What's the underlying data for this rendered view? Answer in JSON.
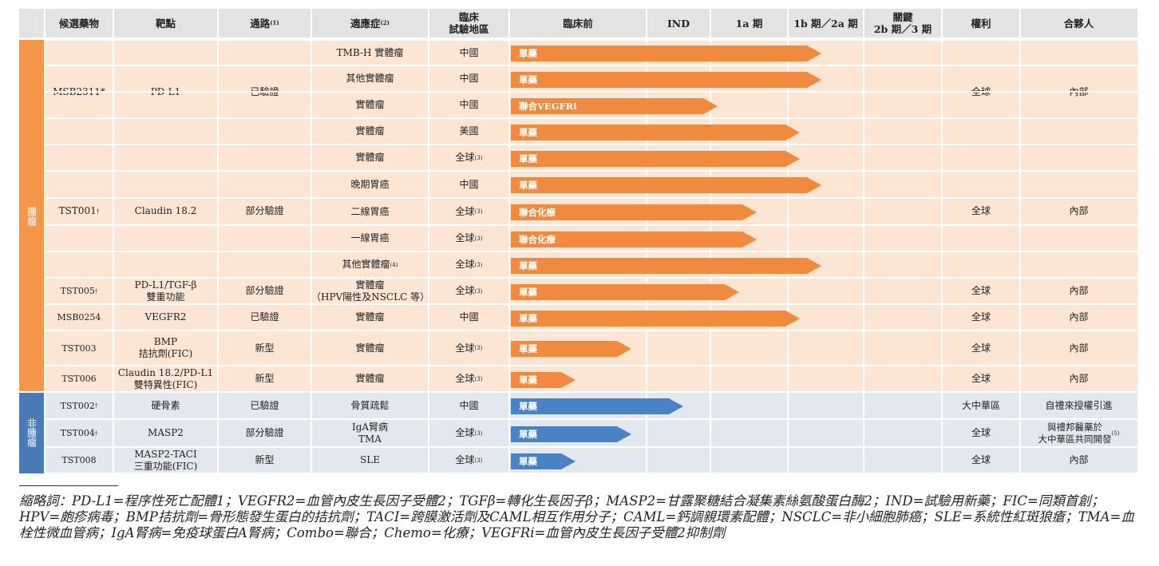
{
  "headers": [
    "候選藥物",
    "靶點",
    "通路",
    "適應症",
    "臨床\n試驗地區",
    "臨床前",
    "IND",
    "1a 期",
    "1b 期／2a 期",
    "關鍵\n2b 期／3 期",
    "權利",
    "合夥人"
  ],
  "header_notes": {
    "route": "(1)",
    "indication": "(2)"
  },
  "groups": [
    {
      "label": "腫瘤",
      "color": "#f5974a"
    },
    {
      "label": "非腫瘤",
      "color": "#4a7ab8"
    }
  ],
  "drugs": [
    {
      "candidate": "MSB2311*",
      "target": "PD-L1",
      "route": "已驗證",
      "rights": "全球",
      "partner": "內部"
    },
    {
      "candidate": "TST001",
      "sup": "†",
      "target": "Claudin 18.2",
      "route": "部分驗證",
      "rights": "全球",
      "partner": "內部"
    },
    {
      "candidate": "TST005",
      "sup": "†",
      "target": "PD-L1/TGF-β\n雙重功能",
      "route": "部分驗證",
      "rights": "全球",
      "partner": "內部"
    },
    {
      "candidate": "MSB0254",
      "target": "VEGFR2",
      "route": "已驗證",
      "rights": "全球",
      "partner": "內部"
    },
    {
      "candidate": "TST003",
      "target": "BMP\n拮抗劑(FIC)",
      "route": "新型",
      "rights": "全球",
      "partner": "內部"
    },
    {
      "candidate": "TST006",
      "target": "Claudin 18.2/PD-L1\n雙特異性(FIC)",
      "route": "新型",
      "rights": "全球",
      "partner": "內部"
    },
    {
      "candidate": "TST002",
      "sup": "†",
      "target": "硬骨素",
      "route": "已驗證",
      "rights": "大中華區",
      "partner": "自禮來授權引進"
    },
    {
      "candidate": "TST004",
      "sup": "†",
      "target": "MASP2",
      "route": "部分驗證",
      "rights": "全球",
      "partner": "與禮邦醫藥於\n大中華區共同開發",
      "partner_note": "(5)"
    },
    {
      "candidate": "TST008",
      "target": "MASP2-TACI\n三重功能(FIC)",
      "route": "新型",
      "rights": "全球",
      "partner": "內部"
    }
  ],
  "programs": [
    {
      "indication": "TMB-H 實體瘤",
      "region": "中國",
      "bar_label": "單藥",
      "progress": 0.72,
      "color": "orange"
    },
    {
      "indication": "其他實體瘤",
      "region": "中國",
      "bar_label": "單藥",
      "progress": 0.72,
      "color": "orange"
    },
    {
      "indication": "實體瘤",
      "region": "中國",
      "bar_label": "聯合VEGFRi",
      "progress": 0.48,
      "color": "orange"
    },
    {
      "indication": "實體瘤",
      "region": "美國",
      "bar_label": "單藥",
      "progress": 0.67,
      "color": "orange"
    },
    {
      "indication": "實體瘤",
      "region": "全球",
      "region_note": "(3)",
      "bar_label": "單藥",
      "progress": 0.67,
      "color": "orange"
    },
    {
      "indication": "晚期胃癌",
      "region": "中國",
      "bar_label": "單藥",
      "progress": 0.72,
      "color": "orange"
    },
    {
      "indication": "二線胃癌",
      "region": "全球",
      "region_note": "(3)",
      "bar_label": "聯合化療",
      "progress": 0.57,
      "color": "orange"
    },
    {
      "indication": "一線胃癌",
      "region": "全球",
      "region_note": "(3)",
      "bar_label": "聯合化療",
      "progress": 0.57,
      "color": "orange"
    },
    {
      "indication": "其他實體瘤",
      "indication_note": "(4)",
      "region": "全球",
      "region_note": "(3)",
      "bar_label": "單藥",
      "progress": 0.72,
      "color": "orange"
    },
    {
      "indication": "實體瘤\n（HPV陽性及NSCLC 等）",
      "region": "全球",
      "region_note": "(3)",
      "bar_label": "單藥",
      "progress": 0.53,
      "color": "orange"
    },
    {
      "indication": "實體瘤",
      "region": "中國",
      "bar_label": "單藥",
      "progress": 0.67,
      "color": "orange"
    },
    {
      "indication": "實體瘤",
      "region": "全球",
      "region_note": "(3)",
      "bar_label": "單藥",
      "progress": 0.28,
      "color": "orange"
    },
    {
      "indication": "實體瘤",
      "region": "全球",
      "region_note": "(3)",
      "bar_label": "單藥",
      "progress": 0.15,
      "color": "orange"
    },
    {
      "indication": "骨質疏鬆",
      "region": "中國",
      "bar_label": "單藥",
      "progress": 0.4,
      "color": "blue"
    },
    {
      "indication": "IgA腎病\nTMA",
      "region": "全球",
      "region_note": "(3)",
      "bar_label": "單藥",
      "progress": 0.28,
      "color": "blue"
    },
    {
      "indication": "SLE",
      "region": "全球",
      "region_note": "(3)",
      "bar_label": "單藥",
      "progress": 0.15,
      "color": "blue"
    }
  ],
  "footnote": "縮略詞：PD-L1=程序性死亡配體1；VEGFR2=血管內皮生長因子受體2；TGFβ=轉化生長因子β；MASP2=甘露聚糖結合凝集素絲氨酸蛋白酶2；IND=試驗用新藥；FIC=同類首創；HPV=皰疹病毒；BMP拮抗劑=骨形態發生蛋白的拮抗劑；TACI=跨膜激活劑及CAML相互作用分子；CAML=鈣調親環素配體；NSCLC=非小細胞肺癌；SLE=系統性紅斑狼瘡；TMA=血栓性微血管病；IgA腎病=免疫球蛋白A腎病；Combo=聯合；Chemo=化療；VEGFRi=血管內皮生長因子受體2抑制劑"
}
